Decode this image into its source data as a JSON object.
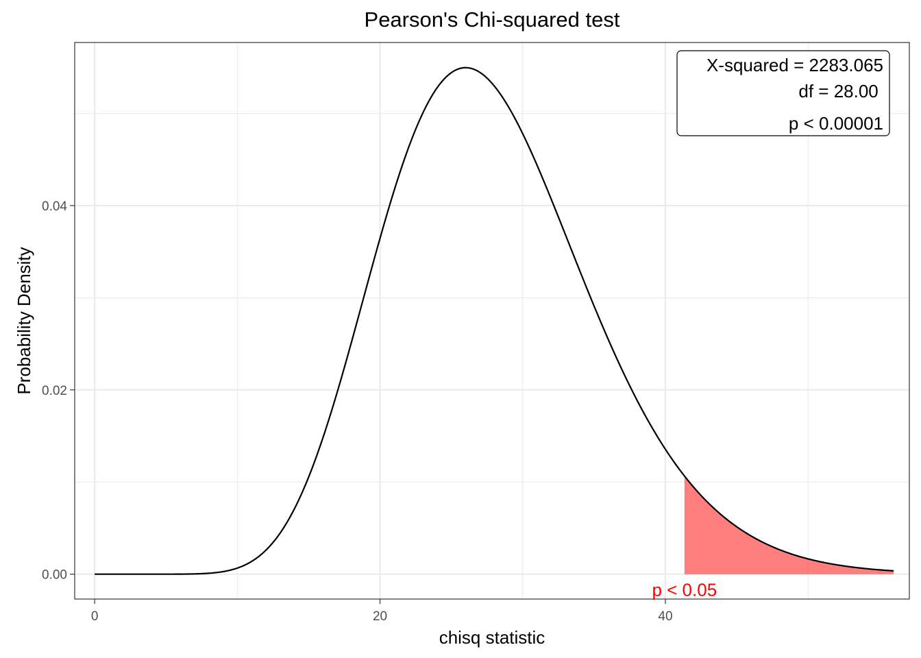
{
  "chart_data": {
    "type": "line",
    "title": "Pearson's Chi-squared test",
    "xlabel": "chisq statistic",
    "ylabel": "Probability Density",
    "xlim": [
      -1.4,
      57.1
    ],
    "ylim": [
      -0.0027,
      0.0577
    ],
    "x_ticks": [
      0,
      20,
      40
    ],
    "y_ticks": [
      0.0,
      0.02,
      0.04
    ],
    "x_tick_labels": [
      "0",
      "20",
      "40"
    ],
    "y_tick_labels": [
      "0.00",
      "0.02",
      "0.04"
    ],
    "grid": true,
    "series": [
      {
        "distribution": "chi-squared",
        "df": 28,
        "x_range": [
          0,
          56
        ],
        "color": "#000000"
      }
    ],
    "shaded_region": {
      "x_from": 41.337,
      "x_to": 56,
      "color": "#ff0000",
      "opacity": 0.5,
      "label": "p < 0.05",
      "label_color": "#ff0000"
    },
    "annotation_box": {
      "lines": [
        "X-squared = 2283.065",
        "df = 28.00 ",
        "p < 0.00001"
      ],
      "placement": "top-right"
    }
  }
}
